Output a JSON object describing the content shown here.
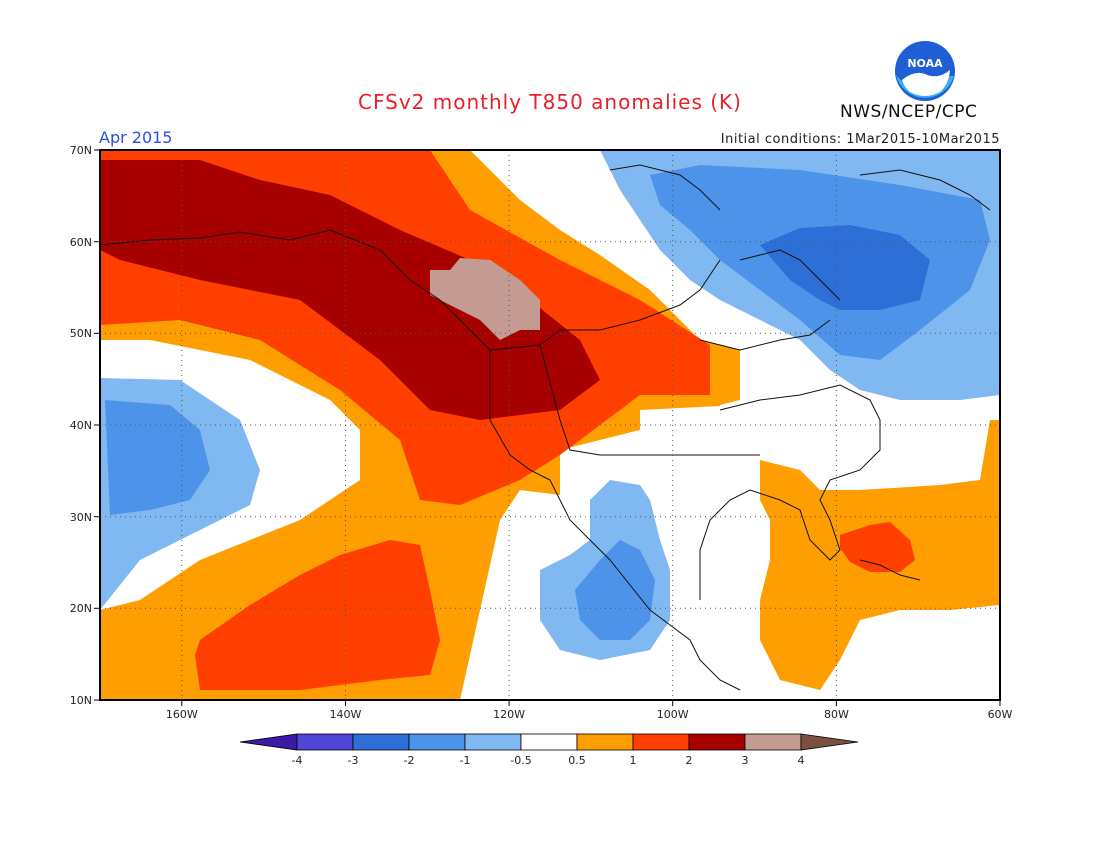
{
  "header": {
    "title": "CFSv2 monthly T850 anomalies (K)",
    "period": "Apr 2015",
    "initial_conditions": "Initial conditions: 1Mar2015-10Mar2015",
    "agency": "NWS/NCEP/CPC",
    "logo_text": "NOAA"
  },
  "map": {
    "lat_labels": [
      "70N",
      "60N",
      "50N",
      "40N",
      "30N",
      "20N",
      "10N"
    ],
    "lon_labels": [
      "160W",
      "140W",
      "120W",
      "100W",
      "80W",
      "60W"
    ]
  },
  "colorbar": {
    "tick_labels": [
      "-4",
      "-3",
      "-2",
      "-1",
      "-0.5",
      "0.5",
      "1",
      "2",
      "3",
      "4"
    ],
    "colors": [
      "#3b1aa8",
      "#5046d6",
      "#2d6fd6",
      "#4d93ea",
      "#80b8f2",
      "#ffffff",
      "#ff9e00",
      "#ff3f00",
      "#a60000",
      "#c49b92",
      "#7a5040"
    ]
  }
}
